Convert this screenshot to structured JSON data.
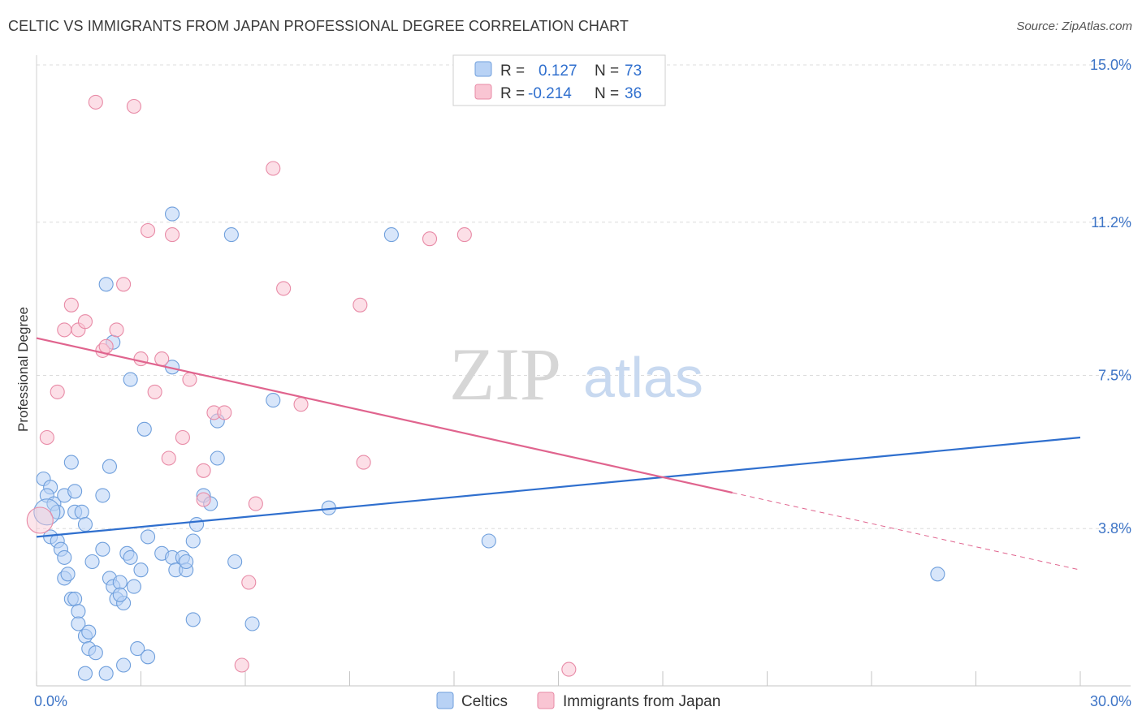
{
  "header": {
    "title": "CELTIC VS IMMIGRANTS FROM JAPAN PROFESSIONAL DEGREE CORRELATION CHART",
    "source": "Source: ZipAtlas.com"
  },
  "watermark": {
    "zip": "ZIP",
    "atlas": "atlas"
  },
  "colors": {
    "celtics_fill": "#b8d2f5",
    "celtics_stroke": "#6f9fdc",
    "celtics_line": "#2f6fce",
    "japan_fill": "#f9c5d3",
    "japan_stroke": "#e88aa6",
    "japan_line": "#e0648e",
    "axis_text": "#3d74c6"
  },
  "legend": {
    "rows": [
      {
        "r_label": "R =",
        "r_value": "0.127",
        "n_label": "N =",
        "n_value": "73"
      },
      {
        "r_label": "R =",
        "r_value": "-0.214",
        "n_label": "N =",
        "n_value": "36"
      }
    ]
  },
  "chart_data": {
    "type": "scatter",
    "title": "CELTIC VS IMMIGRANTS FROM JAPAN PROFESSIONAL DEGREE CORRELATION CHART",
    "xlabel": "",
    "ylabel": "Professional Degree",
    "xlim": [
      0,
      30
    ],
    "ylim": [
      0,
      15
    ],
    "x_tick_labels": [
      "0.0%",
      "30.0%"
    ],
    "y_ticks": [
      3.8,
      7.5,
      11.2,
      15.0
    ],
    "y_tick_labels": [
      "3.8%",
      "7.5%",
      "11.2%",
      "15.0%"
    ],
    "grid": true,
    "legend_position": "top-center",
    "series": [
      {
        "name": "Celtics",
        "trend": {
          "x": [
            0,
            30
          ],
          "y": [
            3.6,
            6.0
          ],
          "dashed_from": null
        },
        "points": [
          [
            0.2,
            5.0
          ],
          [
            0.4,
            4.8
          ],
          [
            0.3,
            4.6
          ],
          [
            0.5,
            4.4
          ],
          [
            0.6,
            4.2
          ],
          [
            0.8,
            4.6
          ],
          [
            1.0,
            5.4
          ],
          [
            1.1,
            4.2
          ],
          [
            1.1,
            4.7
          ],
          [
            1.3,
            4.2
          ],
          [
            1.4,
            3.9
          ],
          [
            0.4,
            3.6
          ],
          [
            0.6,
            3.5
          ],
          [
            0.7,
            3.3
          ],
          [
            0.8,
            3.1
          ],
          [
            0.8,
            2.6
          ],
          [
            0.9,
            2.7
          ],
          [
            1.0,
            2.1
          ],
          [
            1.1,
            2.1
          ],
          [
            1.2,
            1.8
          ],
          [
            1.2,
            1.5
          ],
          [
            1.4,
            1.2
          ],
          [
            1.5,
            1.3
          ],
          [
            1.5,
            0.9
          ],
          [
            1.7,
            0.8
          ],
          [
            1.4,
            0.3
          ],
          [
            2.0,
            0.3
          ],
          [
            2.5,
            0.5
          ],
          [
            2.9,
            0.9
          ],
          [
            3.2,
            0.7
          ],
          [
            1.6,
            3.0
          ],
          [
            1.9,
            3.3
          ],
          [
            2.1,
            2.6
          ],
          [
            2.2,
            2.4
          ],
          [
            2.3,
            2.1
          ],
          [
            2.4,
            2.5
          ],
          [
            2.5,
            2.0
          ],
          [
            2.6,
            3.2
          ],
          [
            2.7,
            3.1
          ],
          [
            2.8,
            2.4
          ],
          [
            3.0,
            2.8
          ],
          [
            3.2,
            3.6
          ],
          [
            3.6,
            3.2
          ],
          [
            3.9,
            3.1
          ],
          [
            4.0,
            2.8
          ],
          [
            4.2,
            3.1
          ],
          [
            4.3,
            2.8
          ],
          [
            4.5,
            1.6
          ],
          [
            4.5,
            3.5
          ],
          [
            4.6,
            3.9
          ],
          [
            4.8,
            4.6
          ],
          [
            5.0,
            4.4
          ],
          [
            5.2,
            6.4
          ],
          [
            5.2,
            5.5
          ],
          [
            5.6,
            10.9
          ],
          [
            5.7,
            3.0
          ],
          [
            6.2,
            1.5
          ],
          [
            6.8,
            6.9
          ],
          [
            2.7,
            7.4
          ],
          [
            2.1,
            5.3
          ],
          [
            1.9,
            4.6
          ],
          [
            2.0,
            9.7
          ],
          [
            2.2,
            8.3
          ],
          [
            3.1,
            6.2
          ],
          [
            3.9,
            11.4
          ],
          [
            3.9,
            7.7
          ],
          [
            8.4,
            4.3
          ],
          [
            10.2,
            10.9
          ],
          [
            13.0,
            3.5
          ],
          [
            25.9,
            2.7
          ],
          [
            2.4,
            2.2
          ],
          [
            4.3,
            3.0
          ],
          [
            0.3,
            4.2
          ]
        ]
      },
      {
        "name": "Immigrants from Japan",
        "trend": {
          "x": [
            0,
            30
          ],
          "y": [
            8.4,
            2.8
          ],
          "dashed_from": 20.0
        },
        "points": [
          [
            0.3,
            6.0
          ],
          [
            0.6,
            7.1
          ],
          [
            0.8,
            8.6
          ],
          [
            1.0,
            9.2
          ],
          [
            1.2,
            8.6
          ],
          [
            1.4,
            8.8
          ],
          [
            1.7,
            14.1
          ],
          [
            1.9,
            8.1
          ],
          [
            2.0,
            8.2
          ],
          [
            2.3,
            8.6
          ],
          [
            2.5,
            9.7
          ],
          [
            2.8,
            14.0
          ],
          [
            3.0,
            7.9
          ],
          [
            3.2,
            11.0
          ],
          [
            3.4,
            7.1
          ],
          [
            3.6,
            7.9
          ],
          [
            3.8,
            5.5
          ],
          [
            3.9,
            10.9
          ],
          [
            4.2,
            6.0
          ],
          [
            4.4,
            7.4
          ],
          [
            4.8,
            4.5
          ],
          [
            4.8,
            5.2
          ],
          [
            5.1,
            6.6
          ],
          [
            5.4,
            6.6
          ],
          [
            5.9,
            0.5
          ],
          [
            6.1,
            2.5
          ],
          [
            6.3,
            4.4
          ],
          [
            6.8,
            12.5
          ],
          [
            7.1,
            9.6
          ],
          [
            7.6,
            6.8
          ],
          [
            9.3,
            9.2
          ],
          [
            9.4,
            5.4
          ],
          [
            11.3,
            10.8
          ],
          [
            12.3,
            10.9
          ],
          [
            15.3,
            0.4
          ],
          [
            0.1,
            4.0
          ]
        ]
      }
    ]
  },
  "bottom_legend": {
    "items": [
      {
        "label": "Celtics"
      },
      {
        "label": "Immigrants from Japan"
      }
    ]
  }
}
